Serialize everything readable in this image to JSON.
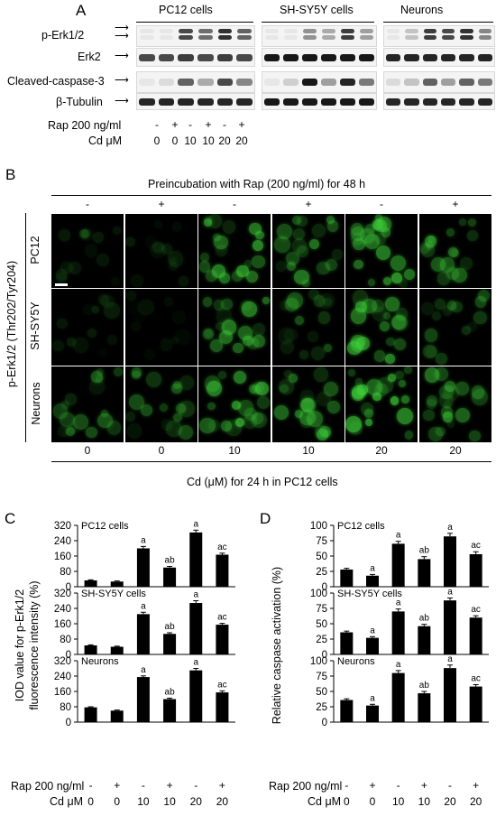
{
  "panelA": {
    "letter": "A",
    "groups": [
      "PC12 cells",
      "SH-SY5Y cells",
      "Neurons"
    ],
    "rows": [
      "p-Erk1/2",
      "Erk2",
      "Cleaved-caspase-3",
      "β-Tubulin"
    ],
    "rap_label": "Rap 200 ng/ml",
    "cd_label": "Cd μM",
    "rap_signs": [
      "-",
      "+",
      "-",
      "+",
      "-",
      "+"
    ],
    "cd_values": [
      "0",
      "0",
      "10",
      "10",
      "20",
      "20"
    ]
  },
  "panelB": {
    "letter": "B",
    "top_title": "Preincubation with Rap (200 ng/ml) for 48 h",
    "top_signs": [
      "-",
      "+",
      "-",
      "+",
      "-",
      "+"
    ],
    "y_title": "p-Erk1/2 (Thr202/Tyr204)",
    "rows": [
      "PC12",
      "SH-SY5Y",
      "Neurons"
    ],
    "bottom_values": [
      "0",
      "0",
      "10",
      "10",
      "20",
      "20"
    ],
    "bottom_title": "Cd (μM) for 24 h in PC12 cells",
    "fluor_color": "#3fd13a"
  },
  "panelC": {
    "letter": "C",
    "ylabel_line1": "IOD value for p-Erk1/2",
    "ylabel_line2": "fluorescence intensity (%)",
    "yticks": [
      "0",
      "80",
      "160",
      "240",
      "320"
    ],
    "rap_label": "Rap 200 ng/ml",
    "cd_label": "Cd μM",
    "rap_signs": [
      "-",
      "+",
      "-",
      "+",
      "-",
      "+"
    ],
    "cd_values": [
      "0",
      "0",
      "10",
      "10",
      "20",
      "20"
    ]
  },
  "panelD": {
    "letter": "D",
    "ylabel": "Relative caspase activation (%)",
    "yticks": [
      "0",
      "25",
      "50",
      "75",
      "100"
    ],
    "rap_label": "Rap 200 ng/ml",
    "cd_label": "Cd μM",
    "rap_signs": [
      "-",
      "+",
      "-",
      "+",
      "-",
      "+"
    ],
    "cd_values": [
      "0",
      "0",
      "10",
      "10",
      "20",
      "20"
    ]
  },
  "chart_data": [
    {
      "type": "bar",
      "panel": "C",
      "subtitle": "PC12 cells",
      "categories": [
        "0/-",
        "0/+",
        "10/-",
        "10/+",
        "20/-",
        "20/+"
      ],
      "values": [
        33,
        27,
        200,
        100,
        283,
        167
      ],
      "errors": [
        3,
        3,
        10,
        6,
        12,
        8
      ],
      "sig": [
        "",
        "",
        "a",
        "ab",
        "a",
        "ac"
      ],
      "ylim": [
        0,
        320
      ]
    },
    {
      "type": "bar",
      "panel": "C",
      "subtitle": "SH-SY5Y cells",
      "categories": [
        "0/-",
        "0/+",
        "10/-",
        "10/+",
        "20/-",
        "20/+"
      ],
      "values": [
        47,
        40,
        210,
        107,
        268,
        155
      ],
      "errors": [
        3,
        3,
        10,
        6,
        12,
        7
      ],
      "sig": [
        "",
        "",
        "a",
        "ab",
        "a",
        "ac"
      ],
      "ylim": [
        0,
        320
      ]
    },
    {
      "type": "bar",
      "panel": "C",
      "subtitle": "Neurons",
      "categories": [
        "0/-",
        "0/+",
        "10/-",
        "10/+",
        "20/-",
        "20/+"
      ],
      "values": [
        77,
        60,
        235,
        120,
        270,
        155
      ],
      "errors": [
        3,
        3,
        6,
        5,
        10,
        8
      ],
      "sig": [
        "",
        "",
        "a",
        "ab",
        "a",
        "ac"
      ],
      "ylim": [
        0,
        320
      ]
    },
    {
      "type": "bar",
      "panel": "D",
      "subtitle": "PC12 cells",
      "categories": [
        "0/-",
        "0/+",
        "10/-",
        "10/+",
        "20/-",
        "20/+"
      ],
      "values": [
        28,
        18,
        70,
        45,
        82,
        53
      ],
      "errors": [
        2,
        2,
        4,
        4,
        5,
        4
      ],
      "sig": [
        "",
        "a",
        "a",
        "ab",
        "a",
        "ac"
      ],
      "ylim": [
        0,
        100
      ]
    },
    {
      "type": "bar",
      "panel": "D",
      "subtitle": "SH-SY5Y cells",
      "categories": [
        "0/-",
        "0/+",
        "10/-",
        "10/+",
        "20/-",
        "20/+"
      ],
      "values": [
        36,
        27,
        70,
        46,
        88,
        60
      ],
      "errors": [
        2,
        2,
        4,
        3,
        4,
        3
      ],
      "sig": [
        "",
        "a",
        "a",
        "ab",
        "a",
        "ac"
      ],
      "ylim": [
        0,
        100
      ]
    },
    {
      "type": "bar",
      "panel": "D",
      "subtitle": "Neurons",
      "categories": [
        "0/-",
        "0/+",
        "10/-",
        "10/+",
        "20/-",
        "20/+"
      ],
      "values": [
        36,
        27,
        80,
        47,
        88,
        58
      ],
      "errors": [
        2,
        2,
        4,
        3,
        5,
        3
      ],
      "sig": [
        "",
        "a",
        "a",
        "ab",
        "a",
        "ac"
      ],
      "ylim": [
        0,
        100
      ]
    }
  ]
}
